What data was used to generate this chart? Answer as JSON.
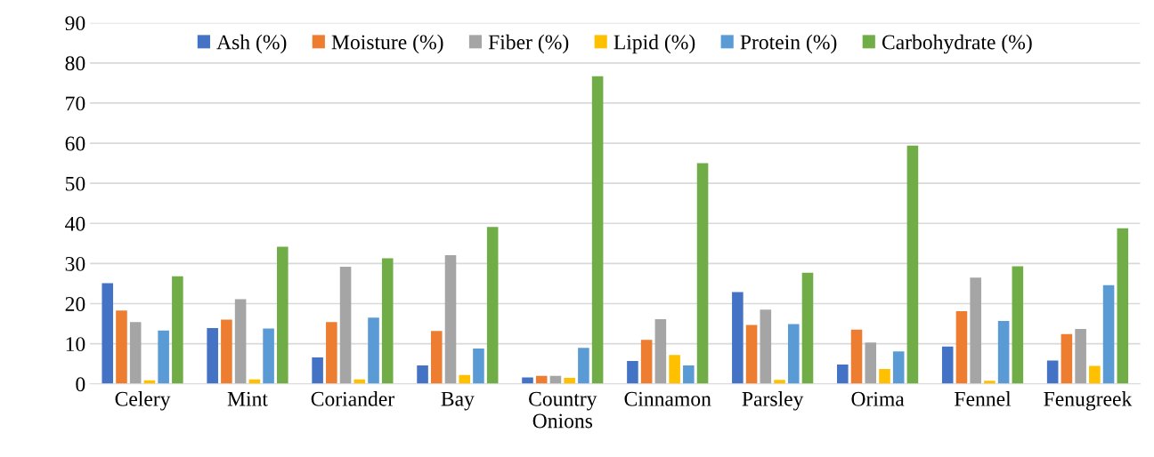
{
  "chart_data": {
    "type": "bar",
    "categories": [
      "Celery",
      "Mint",
      "Coriander",
      "Bay",
      "Country\nOnions",
      "Cinnamon",
      "Parsley",
      "Orima",
      "Fennel",
      "Fenugreek"
    ],
    "series": [
      {
        "name": "Ash (%)",
        "color": "#4472c4",
        "values": [
          25.1,
          13.9,
          6.6,
          4.6,
          1.6,
          5.7,
          22.9,
          4.8,
          9.3,
          5.8
        ]
      },
      {
        "name": "Moisture (%)",
        "color": "#ed7d31",
        "values": [
          18.3,
          16.0,
          15.4,
          13.2,
          2.0,
          11.0,
          14.7,
          13.5,
          18.1,
          12.4
        ]
      },
      {
        "name": "Fiber (%)",
        "color": "#a5a5a5",
        "values": [
          15.4,
          21.1,
          29.2,
          32.1,
          2.0,
          16.1,
          18.5,
          10.3,
          26.5,
          13.7
        ]
      },
      {
        "name": "Lipid (%)",
        "color": "#ffc000",
        "values": [
          0.9,
          1.1,
          1.1,
          2.2,
          1.5,
          7.2,
          1.0,
          3.7,
          0.8,
          4.5
        ]
      },
      {
        "name": "Protein (%)",
        "color": "#5b9bd5",
        "values": [
          13.3,
          13.8,
          16.5,
          8.8,
          9.0,
          4.6,
          14.9,
          8.1,
          15.7,
          24.6
        ]
      },
      {
        "name": "Carbohydrate (%)",
        "color": "#70ad47",
        "values": [
          26.8,
          34.2,
          31.3,
          39.1,
          76.7,
          55.0,
          27.7,
          59.4,
          29.3,
          38.8
        ]
      }
    ],
    "ylim": [
      0,
      90
    ],
    "yticks": [
      0,
      10,
      20,
      30,
      40,
      50,
      60,
      70,
      80,
      90
    ],
    "grid": "y",
    "legend": "top"
  }
}
